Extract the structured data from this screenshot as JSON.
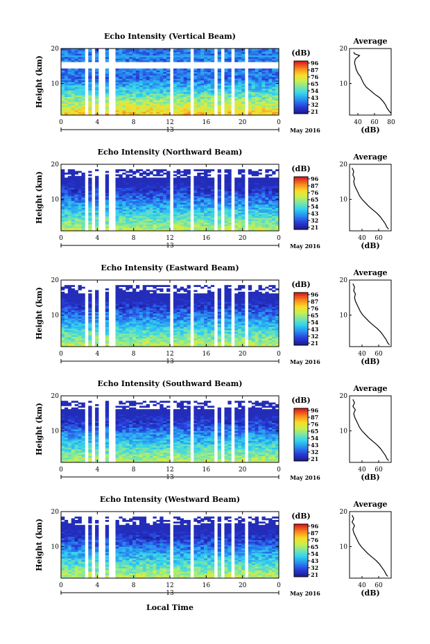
{
  "chart_data": [
    {
      "type": "heatmap",
      "title": "Echo Intensity (Vertical Beam)",
      "ylabel": "Height (km)",
      "x_ticks": [
        "0",
        "4",
        "8",
        "12",
        "16",
        "20",
        "0"
      ],
      "y_ticks": [
        "20",
        "10"
      ],
      "date_day": "13",
      "date_label": "May 2016",
      "xlim": [
        0,
        24
      ],
      "ylim": [
        1,
        20
      ],
      "gaps_hours": [
        [
          2.6,
          3.0
        ],
        [
          3.4,
          3.7
        ],
        [
          4.3,
          4.8
        ],
        [
          5.1,
          5.5
        ],
        [
          5.8,
          6.1
        ],
        [
          11.9,
          12.2
        ],
        [
          14.2,
          14.5
        ],
        [
          16.9,
          17.1
        ],
        [
          17.6,
          18.0
        ],
        [
          18.3,
          18.5
        ],
        [
          18.7,
          19.0
        ],
        [
          20.4,
          20.7
        ],
        [
          21.6,
          21.8
        ]
      ],
      "colorbar": {
        "unit": "(dB)",
        "ticks": [
          "96",
          "87",
          "76",
          "65",
          "54",
          "43",
          "32",
          "21"
        ],
        "range": [
          21,
          96
        ]
      },
      "profile": {
        "title": "Average",
        "xlabel": "(dB)",
        "x_ticks": [
          "40",
          "60",
          "80"
        ],
        "xlim": [
          30,
          80
        ],
        "y_ticks": [
          "20",
          "10"
        ],
        "height_km": [
          1.5,
          2,
          3,
          4,
          5,
          6,
          7,
          8,
          9,
          10,
          11,
          12,
          13,
          14,
          15,
          16,
          17,
          18,
          18.5,
          19
        ],
        "values_db": [
          80,
          78,
          75,
          73,
          70,
          66,
          60,
          55,
          50,
          47,
          45,
          43,
          40,
          38,
          37,
          36,
          37,
          42,
          36,
          35
        ]
      }
    },
    {
      "type": "heatmap",
      "title": "Echo Intensity (Northward Beam)",
      "ylabel": "Height (km)",
      "x_ticks": [
        "0",
        "4",
        "8",
        "12",
        "16",
        "20",
        "0"
      ],
      "y_ticks": [
        "20",
        "10"
      ],
      "date_day": "13",
      "date_label": "May 2016",
      "xlim": [
        0,
        24
      ],
      "ylim": [
        1,
        20
      ],
      "gaps_hours": [
        [
          2.6,
          3.0
        ],
        [
          3.4,
          3.7
        ],
        [
          4.3,
          4.8
        ],
        [
          5.1,
          5.5
        ],
        [
          5.8,
          6.1
        ],
        [
          11.9,
          12.2
        ],
        [
          14.2,
          14.5
        ],
        [
          16.9,
          17.1
        ],
        [
          17.6,
          18.0
        ],
        [
          18.3,
          18.5
        ],
        [
          18.7,
          19.0
        ],
        [
          20.4,
          20.7
        ],
        [
          21.6,
          21.8
        ]
      ],
      "colorbar": {
        "unit": "(dB)",
        "ticks": [
          "96",
          "87",
          "76",
          "65",
          "54",
          "43",
          "32",
          "21"
        ],
        "range": [
          21,
          96
        ]
      },
      "profile": {
        "title": "Average",
        "xlabel": "(dB)",
        "x_ticks": [
          "40",
          "60"
        ],
        "xlim": [
          25,
          75
        ],
        "y_ticks": [
          "20",
          "10"
        ],
        "height_km": [
          1.5,
          2,
          3,
          4,
          5,
          6,
          7,
          8,
          9,
          10,
          11,
          12,
          13,
          14,
          15,
          16,
          17,
          18,
          19
        ],
        "values_db": [
          72,
          70,
          68,
          65,
          62,
          58,
          53,
          48,
          44,
          40,
          37,
          35,
          33,
          31,
          30,
          31,
          29,
          30,
          28
        ]
      }
    },
    {
      "type": "heatmap",
      "title": "Echo Intensity (Eastward Beam)",
      "ylabel": "Height (km)",
      "x_ticks": [
        "0",
        "4",
        "8",
        "12",
        "16",
        "20",
        "0"
      ],
      "y_ticks": [
        "20",
        "10"
      ],
      "date_day": "13",
      "date_label": "May 2016",
      "xlim": [
        0,
        24
      ],
      "ylim": [
        1,
        20
      ],
      "gaps_hours": [
        [
          2.6,
          3.0
        ],
        [
          3.4,
          3.7
        ],
        [
          4.3,
          4.8
        ],
        [
          5.1,
          5.5
        ],
        [
          5.8,
          6.1
        ],
        [
          11.9,
          12.2
        ],
        [
          14.2,
          14.5
        ],
        [
          16.9,
          17.1
        ],
        [
          17.6,
          18.0
        ],
        [
          18.3,
          18.5
        ],
        [
          18.7,
          19.0
        ],
        [
          20.4,
          20.7
        ],
        [
          21.6,
          21.8
        ]
      ],
      "colorbar": {
        "unit": "(dB)",
        "ticks": [
          "96",
          "87",
          "76",
          "65",
          "54",
          "43",
          "32",
          "21"
        ],
        "range": [
          21,
          96
        ]
      },
      "profile": {
        "title": "Average",
        "xlabel": "(dB)",
        "x_ticks": [
          "40",
          "60"
        ],
        "xlim": [
          25,
          75
        ],
        "y_ticks": [
          "20",
          "10"
        ],
        "height_km": [
          1.5,
          2,
          3,
          4,
          5,
          6,
          7,
          8,
          9,
          10,
          11,
          12,
          13,
          14,
          15,
          16,
          17,
          18,
          19
        ],
        "values_db": [
          73,
          71,
          69,
          66,
          63,
          59,
          54,
          49,
          45,
          41,
          38,
          36,
          34,
          32,
          31,
          32,
          30,
          31,
          29
        ]
      }
    },
    {
      "type": "heatmap",
      "title": "Echo Intensity (Southward Beam)",
      "ylabel": "Height (km)",
      "x_ticks": [
        "0",
        "4",
        "8",
        "12",
        "16",
        "20",
        "0"
      ],
      "y_ticks": [
        "20",
        "10"
      ],
      "date_day": "13",
      "date_label": "May 2016",
      "xlim": [
        0,
        24
      ],
      "ylim": [
        1,
        20
      ],
      "gaps_hours": [
        [
          2.6,
          3.0
        ],
        [
          3.4,
          3.7
        ],
        [
          4.3,
          4.8
        ],
        [
          5.1,
          5.5
        ],
        [
          5.8,
          6.1
        ],
        [
          11.9,
          12.2
        ],
        [
          14.2,
          14.5
        ],
        [
          16.9,
          17.1
        ],
        [
          17.6,
          18.0
        ],
        [
          18.3,
          18.5
        ],
        [
          18.7,
          19.0
        ],
        [
          20.4,
          20.7
        ],
        [
          21.6,
          21.8
        ]
      ],
      "colorbar": {
        "unit": "(dB)",
        "ticks": [
          "96",
          "87",
          "76",
          "65",
          "54",
          "43",
          "32",
          "21"
        ],
        "range": [
          21,
          96
        ]
      },
      "profile": {
        "title": "Average",
        "xlabel": "(dB)",
        "x_ticks": [
          "40",
          "60"
        ],
        "xlim": [
          25,
          75
        ],
        "y_ticks": [
          "20",
          "10"
        ],
        "height_km": [
          1.5,
          2,
          3,
          4,
          5,
          6,
          7,
          8,
          9,
          10,
          11,
          12,
          13,
          14,
          15,
          16,
          17,
          18,
          19
        ],
        "values_db": [
          72,
          70,
          68,
          65,
          62,
          58,
          53,
          48,
          44,
          40,
          37,
          35,
          33,
          31,
          30,
          32,
          29,
          31,
          29
        ]
      }
    },
    {
      "type": "heatmap",
      "title": "Echo Intensity (Westward Beam)",
      "ylabel": "Height (km)",
      "x_ticks": [
        "0",
        "4",
        "8",
        "12",
        "16",
        "20",
        "0"
      ],
      "y_ticks": [
        "20",
        "10"
      ],
      "date_day": "13",
      "date_label": "May 2016",
      "xlabel": "Local Time",
      "xlim": [
        0,
        24
      ],
      "ylim": [
        1,
        20
      ],
      "gaps_hours": [
        [
          2.6,
          3.0
        ],
        [
          3.4,
          3.7
        ],
        [
          4.3,
          4.8
        ],
        [
          5.1,
          5.5
        ],
        [
          5.8,
          6.1
        ],
        [
          11.9,
          12.2
        ],
        [
          14.2,
          14.5
        ],
        [
          16.9,
          17.1
        ],
        [
          17.6,
          18.0
        ],
        [
          18.3,
          18.5
        ],
        [
          18.7,
          19.0
        ],
        [
          20.4,
          20.7
        ],
        [
          21.6,
          21.8
        ]
      ],
      "colorbar": {
        "unit": "(dB)",
        "ticks": [
          "96",
          "87",
          "76",
          "65",
          "54",
          "43",
          "32",
          "21"
        ],
        "range": [
          21,
          96
        ]
      },
      "profile": {
        "title": "Average",
        "xlabel": "(dB)",
        "x_ticks": [
          "40",
          "60"
        ],
        "xlim": [
          25,
          75
        ],
        "y_ticks": [
          "20",
          "10"
        ],
        "height_km": [
          1.5,
          2,
          3,
          4,
          5,
          6,
          7,
          8,
          9,
          10,
          11,
          12,
          13,
          14,
          15,
          16,
          17,
          18,
          19
        ],
        "values_db": [
          71,
          69,
          67,
          64,
          61,
          57,
          52,
          47,
          43,
          39,
          36,
          34,
          32,
          30,
          29,
          31,
          28,
          30,
          28
        ]
      }
    }
  ]
}
